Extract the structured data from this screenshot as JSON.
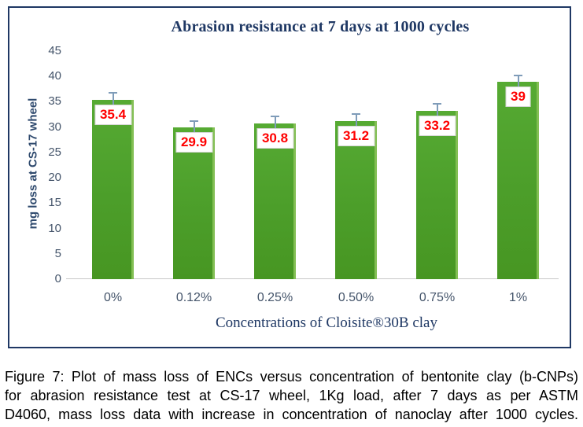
{
  "figure": {
    "caption_lines": [
      "Figure 7: Plot of mass loss of ENCs versus concentration of bentonite clay (b-CNPs)",
      "for abrasion resistance test at CS-17 wheel, 1Kg load, after 7 days as per ASTM",
      "D4060, mass loss data with increase in concentration of nanoclay after 1000 cycles."
    ]
  },
  "chart_data": {
    "type": "bar",
    "title": "Abrasion resistance at 7 days at 1000 cycles",
    "categories": [
      "0%",
      "0.12%",
      "0.25%",
      "0.50%",
      "0.75%",
      "1%"
    ],
    "values": [
      35.4,
      29.9,
      30.8,
      31.2,
      33.2,
      39
    ],
    "value_labels": [
      "35.4",
      "29.9",
      "30.8",
      "31.2",
      "33.2",
      "39"
    ],
    "error_bars_upper": [
      1.6,
      1.5,
      1.4,
      1.5,
      1.5,
      1.3
    ],
    "xlabel": "Concentrations of Cloisite®30B  clay",
    "ylabel": "mg loss at CS-17 wheel",
    "ylim": [
      0,
      45
    ],
    "yticks": [
      0,
      5,
      10,
      15,
      20,
      25,
      30,
      35,
      40,
      45
    ],
    "grid": false,
    "legend": null,
    "colors": {
      "bar_fill": "#4C9E2A",
      "bar_edge_highlight": "#83BF54",
      "error_bar": "#7F9CB9",
      "data_label_text": "#FF0000",
      "data_label_bg": "#FFFFFF",
      "data_label_border": "#D6D6D6",
      "axis_line": "#C9C9C9",
      "title_text": "#1F3864",
      "tick_text": "#44546A",
      "frame_border": "#1F3864",
      "caption_text": "#000000"
    }
  }
}
